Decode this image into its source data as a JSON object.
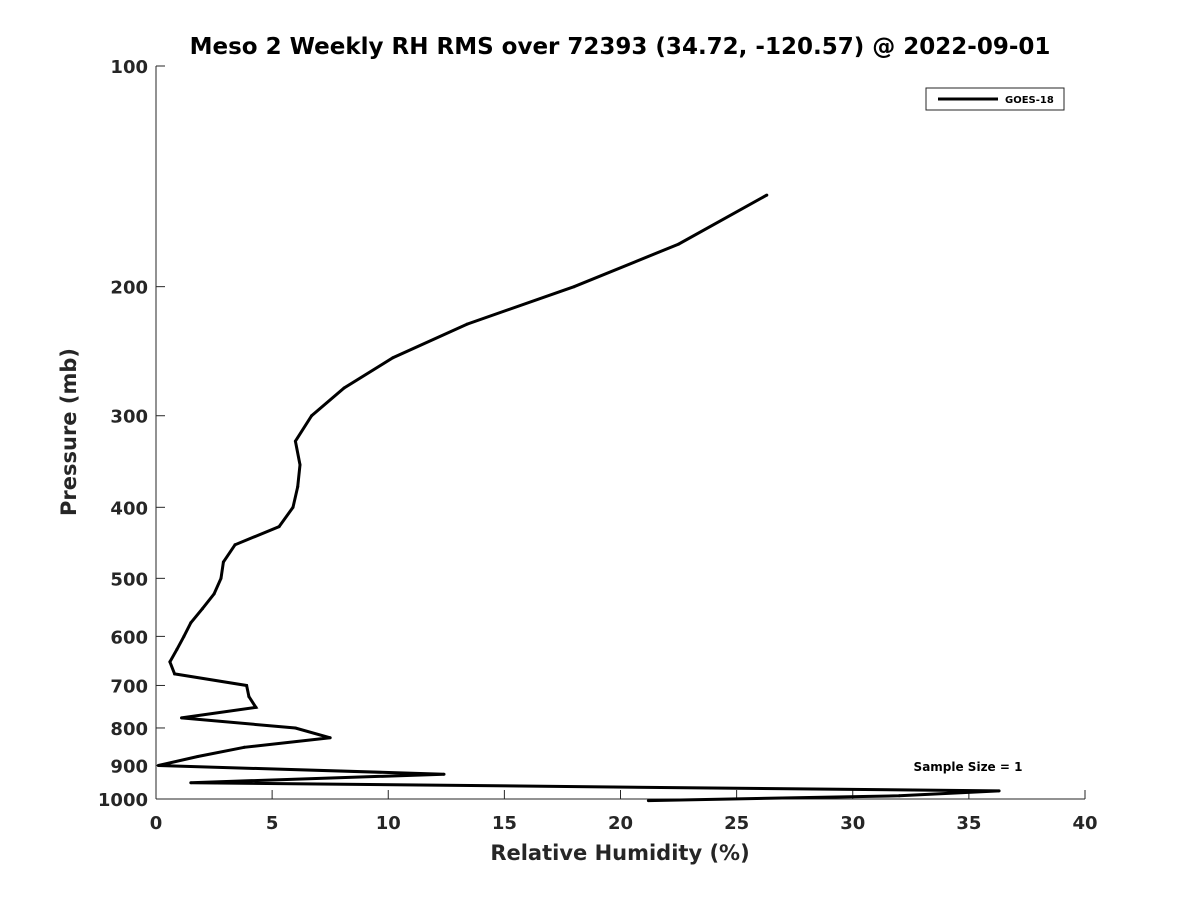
{
  "chart_data": {
    "type": "line",
    "title": "Meso 2 Weekly RH RMS over 72393 (34.72, -120.57) @ 2022-09-01",
    "xlabel": "Relative Humidity (%)",
    "ylabel": "Pressure (mb)",
    "xlim": [
      0,
      40
    ],
    "ylim": [
      100,
      1000
    ],
    "y_scale": "log",
    "y_reversed": true,
    "xticks": [
      0,
      5,
      10,
      15,
      20,
      25,
      30,
      35,
      40
    ],
    "yticks": [
      100,
      200,
      300,
      400,
      500,
      600,
      700,
      800,
      900,
      1000
    ],
    "grid": false,
    "legend_position": "top-right",
    "annotation": "Sample Size = 1",
    "series": [
      {
        "name": "GOES-18",
        "color": "#000000",
        "points": [
          {
            "x": 26.3,
            "p": 150
          },
          {
            "x": 22.5,
            "p": 175
          },
          {
            "x": 18.0,
            "p": 200
          },
          {
            "x": 13.4,
            "p": 225
          },
          {
            "x": 10.2,
            "p": 250
          },
          {
            "x": 8.1,
            "p": 275
          },
          {
            "x": 6.7,
            "p": 300
          },
          {
            "x": 6.0,
            "p": 325
          },
          {
            "x": 6.2,
            "p": 350
          },
          {
            "x": 6.1,
            "p": 375
          },
          {
            "x": 5.9,
            "p": 400
          },
          {
            "x": 5.3,
            "p": 425
          },
          {
            "x": 3.4,
            "p": 450
          },
          {
            "x": 2.9,
            "p": 475
          },
          {
            "x": 2.8,
            "p": 500
          },
          {
            "x": 2.5,
            "p": 525
          },
          {
            "x": 2.0,
            "p": 550
          },
          {
            "x": 1.5,
            "p": 575
          },
          {
            "x": 1.2,
            "p": 600
          },
          {
            "x": 0.9,
            "p": 625
          },
          {
            "x": 0.6,
            "p": 650
          },
          {
            "x": 0.8,
            "p": 675
          },
          {
            "x": 3.9,
            "p": 700
          },
          {
            "x": 4.0,
            "p": 725
          },
          {
            "x": 4.3,
            "p": 750
          },
          {
            "x": 1.1,
            "p": 775
          },
          {
            "x": 6.0,
            "p": 800
          },
          {
            "x": 7.5,
            "p": 825
          },
          {
            "x": 3.8,
            "p": 850
          },
          {
            "x": 1.8,
            "p": 875
          },
          {
            "x": 0.1,
            "p": 900
          },
          {
            "x": 12.4,
            "p": 925
          },
          {
            "x": 1.5,
            "p": 950
          },
          {
            "x": 36.3,
            "p": 975
          },
          {
            "x": 32.0,
            "p": 990
          },
          {
            "x": 21.2,
            "p": 1005
          }
        ]
      }
    ]
  }
}
